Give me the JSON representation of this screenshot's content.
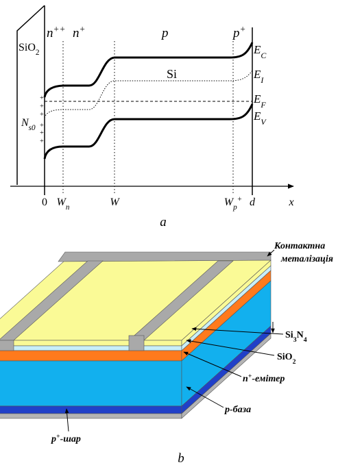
{
  "panel_a": {
    "oxide_label": [
      {
        "t": "SiO"
      },
      {
        "t": "2",
        "sub": true
      }
    ],
    "regions": [
      [
        {
          "t": "n"
        },
        {
          "t": "++",
          "sup": true
        }
      ],
      [
        {
          "t": "n"
        },
        {
          "t": "+",
          "sup": true
        }
      ],
      [
        {
          "t": "p"
        }
      ],
      [
        {
          "t": "p"
        },
        {
          "t": "+",
          "sup": true
        }
      ]
    ],
    "semiconductor_label": [
      {
        "t": "Si"
      }
    ],
    "bands": [
      [
        {
          "t": "E"
        },
        {
          "t": "C",
          "sub": true
        }
      ],
      [
        {
          "t": "E"
        },
        {
          "t": "I",
          "sub": true
        }
      ],
      [
        {
          "t": "E"
        },
        {
          "t": "F",
          "sub": true
        }
      ],
      [
        {
          "t": "E"
        },
        {
          "t": "V",
          "sub": true
        }
      ]
    ],
    "surface_charge": [
      {
        "t": "N"
      },
      {
        "t": "s0",
        "sub": true
      }
    ],
    "charge_signs": [
      "+",
      "+",
      "+",
      "+",
      "+",
      "+"
    ],
    "axis_ticks": [
      [
        {
          "t": "0"
        }
      ],
      [
        {
          "t": "W"
        },
        {
          "t": "n",
          "sub": true
        }
      ],
      [
        {
          "t": "W"
        }
      ],
      [
        {
          "t": "W"
        },
        {
          "t": "p",
          "sub": true
        },
        {
          "t": "+",
          "sup": true
        }
      ],
      [
        {
          "t": "d"
        }
      ]
    ],
    "axis_label": [
      {
        "t": "x"
      }
    ],
    "caption": [
      {
        "t": "a"
      }
    ]
  },
  "panel_b": {
    "contact_label": [
      [
        {
          "t": "Контактна"
        }
      ],
      [
        {
          "t": "металізація"
        }
      ]
    ],
    "layer_labels": [
      [
        {
          "t": "Si"
        },
        {
          "t": "3",
          "sub": true
        },
        {
          "t": "N"
        },
        {
          "t": "4",
          "sub": true
        }
      ],
      [
        {
          "t": "SiO"
        },
        {
          "t": "2",
          "sub": true
        }
      ],
      [
        {
          "t": "n"
        },
        {
          "t": "+",
          "sup": true
        },
        {
          "t": "-емітер"
        }
      ],
      [
        {
          "t": "p-база"
        }
      ],
      [
        {
          "t": "p"
        },
        {
          "t": "+",
          "sup": true
        },
        {
          "t": "-шар"
        }
      ]
    ],
    "caption": [
      {
        "t": "b"
      }
    ]
  }
}
